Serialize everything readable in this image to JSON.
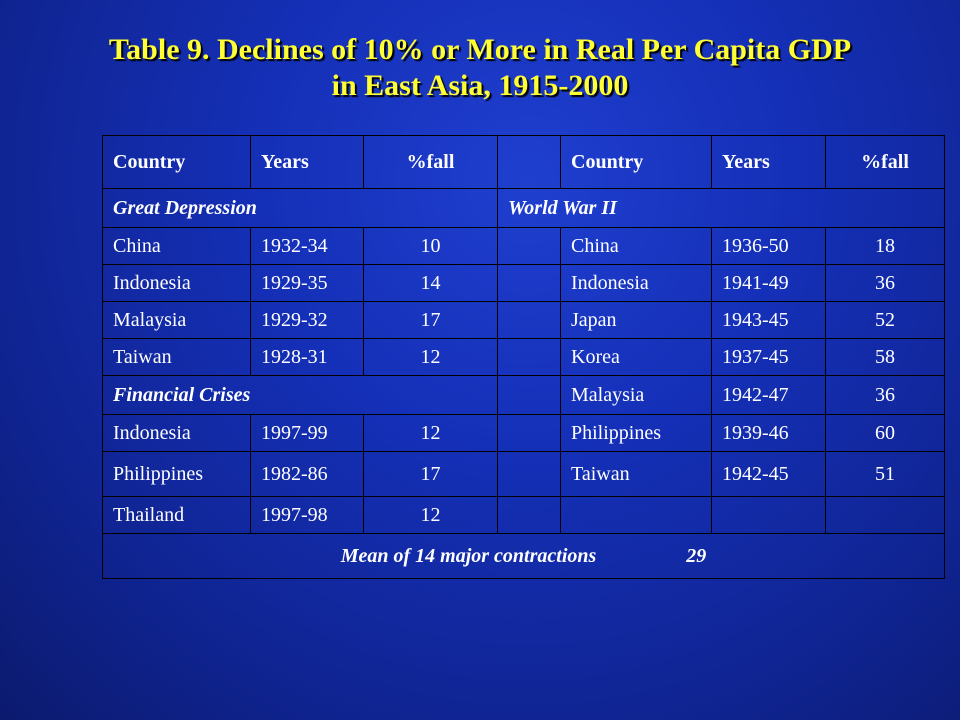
{
  "title": {
    "line1": "Table 9. Declines of 10% or More in Real Per Capita GDP",
    "line2": "in East Asia, 1915-2000"
  },
  "table": {
    "headers": [
      "Country",
      "Years",
      "%fall",
      "",
      "Country",
      "Years",
      "%fall"
    ],
    "left_group_1": "Great Depression",
    "right_group_1": "World War II",
    "left_group_2": "Financial Crises",
    "rows": [
      {
        "lc": "China",
        "ly": "1932-34",
        "lf": "10",
        "rc": "China",
        "ry": "1936-50",
        "rf": "18"
      },
      {
        "lc": "Indonesia",
        "ly": "1929-35",
        "lf": "14",
        "rc": "Indonesia",
        "ry": "1941-49",
        "rf": "36"
      },
      {
        "lc": "Malaysia",
        "ly": "1929-32",
        "lf": "17",
        "rc": "Japan",
        "ry": "1943-45",
        "rf": "52"
      },
      {
        "lc": "Taiwan",
        "ly": "1928-31",
        "lf": "12",
        "rc": "Korea",
        "ry": "1937-45",
        "rf": "58"
      },
      {
        "rc": "Malaysia",
        "ry": "1942-47",
        "rf": "36"
      },
      {
        "lc": "Indonesia",
        "ly": "1997-99",
        "lf": "12",
        "rc": "Philippines",
        "ry": "1939-46",
        "rf": "60"
      },
      {
        "lc": "Philippines",
        "ly": "1982-86",
        "lf": "17",
        "rc": "Taiwan",
        "ry": "1942-45",
        "rf": "51"
      },
      {
        "lc": "Thailand",
        "ly": "1997-98",
        "lf": "12",
        "rc": "",
        "ry": "",
        "rf": ""
      }
    ],
    "mean_label": "Mean of 14 major contractions",
    "mean_value": "29"
  }
}
